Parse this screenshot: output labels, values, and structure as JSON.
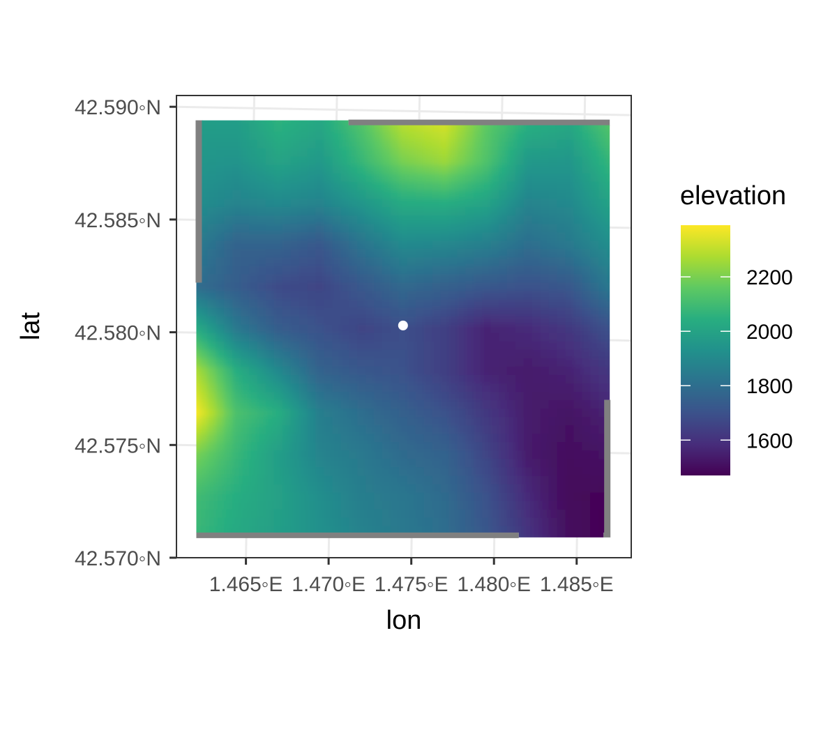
{
  "chart_data": {
    "type": "heatmap",
    "title": "",
    "xlabel": "lon",
    "ylabel": "lat",
    "x_ticks": [
      1.465,
      1.47,
      1.475,
      1.48,
      1.485
    ],
    "x_tick_labels": [
      "1.465◦E",
      "1.470◦E",
      "1.475◦E",
      "1.480◦E",
      "1.485◦E"
    ],
    "y_ticks": [
      42.57,
      42.575,
      42.58,
      42.585,
      42.59
    ],
    "y_tick_labels": [
      "42.570◦N",
      "42.575◦N",
      "42.580◦N",
      "42.585◦N",
      "42.590◦N"
    ],
    "xlim": [
      1.4608,
      1.4883
    ],
    "ylim": [
      42.57,
      42.5905
    ],
    "raster_extent": {
      "lon": [
        1.462,
        1.487
      ],
      "lat": [
        42.5709,
        42.5894
      ]
    },
    "colorscale": "viridis",
    "fill_range": [
      1470,
      2390
    ],
    "na_color": "#808080",
    "legend": {
      "title": "elevation",
      "position": "right",
      "ticks": [
        2200,
        2000,
        1800,
        1600
      ],
      "tick_labels": [
        "2200",
        "2000",
        "1800",
        "1600"
      ]
    },
    "grid_columns": [
      "1.4620",
      "1.4645",
      "1.4670",
      "1.4695",
      "1.4720",
      "1.4745",
      "1.4770",
      "1.4795",
      "1.4820",
      "1.4845",
      "1.4870"
    ],
    "grid_rows": [
      "42.5894",
      "42.5875",
      "42.5857",
      "42.5838",
      "42.5820",
      "42.5801",
      "42.5783",
      "42.5764",
      "42.5746",
      "42.5727",
      "42.5709"
    ],
    "elevation_grid": [
      [
        1980,
        1980,
        2060,
        2020,
        2140,
        2300,
        2340,
        2160,
        2060,
        2030,
        2150
      ],
      [
        1950,
        1940,
        2000,
        1960,
        2080,
        2200,
        2250,
        2130,
        1960,
        1950,
        2080
      ],
      [
        1920,
        1880,
        1900,
        1880,
        1950,
        2030,
        2040,
        2000,
        1880,
        1900,
        2000
      ],
      [
        1850,
        1760,
        1760,
        1720,
        1820,
        1900,
        1890,
        1860,
        1800,
        1840,
        1920
      ],
      [
        1800,
        1740,
        1680,
        1660,
        1720,
        1780,
        1750,
        1720,
        1700,
        1720,
        1840
      ],
      [
        2040,
        1840,
        1740,
        1700,
        1660,
        1690,
        1640,
        1560,
        1580,
        1620,
        1700
      ],
      [
        2280,
        2040,
        1900,
        1760,
        1720,
        1700,
        1640,
        1560,
        1540,
        1560,
        1620
      ],
      [
        2390,
        2120,
        2040,
        1860,
        1800,
        1750,
        1700,
        1620,
        1540,
        1520,
        1560
      ],
      [
        2200,
        2080,
        1980,
        1880,
        1840,
        1790,
        1760,
        1660,
        1540,
        1500,
        1520
      ],
      [
        2100,
        2040,
        1990,
        1920,
        1860,
        1830,
        1790,
        1700,
        1580,
        1490,
        1480
      ],
      [
        2080,
        2020,
        1980,
        1930,
        1880,
        1840,
        1800,
        1720,
        1610,
        1500,
        1470
      ]
    ],
    "na_segments": [
      {
        "side": "left",
        "lon": 1.462,
        "lat_from": 42.5822,
        "lat_to": 42.5894
      },
      {
        "side": "top",
        "lat": 42.5894,
        "lon_from": 1.4712,
        "lon_to": 1.487
      },
      {
        "side": "right",
        "lon": 1.487,
        "lat_from": 42.5709,
        "lat_to": 42.577
      },
      {
        "side": "bottom",
        "lat": 42.5709,
        "lon_from": 1.462,
        "lon_to": 1.4815
      }
    ],
    "marker": {
      "lon": 1.4745,
      "lat": 42.5803,
      "color": "#ffffff"
    }
  }
}
